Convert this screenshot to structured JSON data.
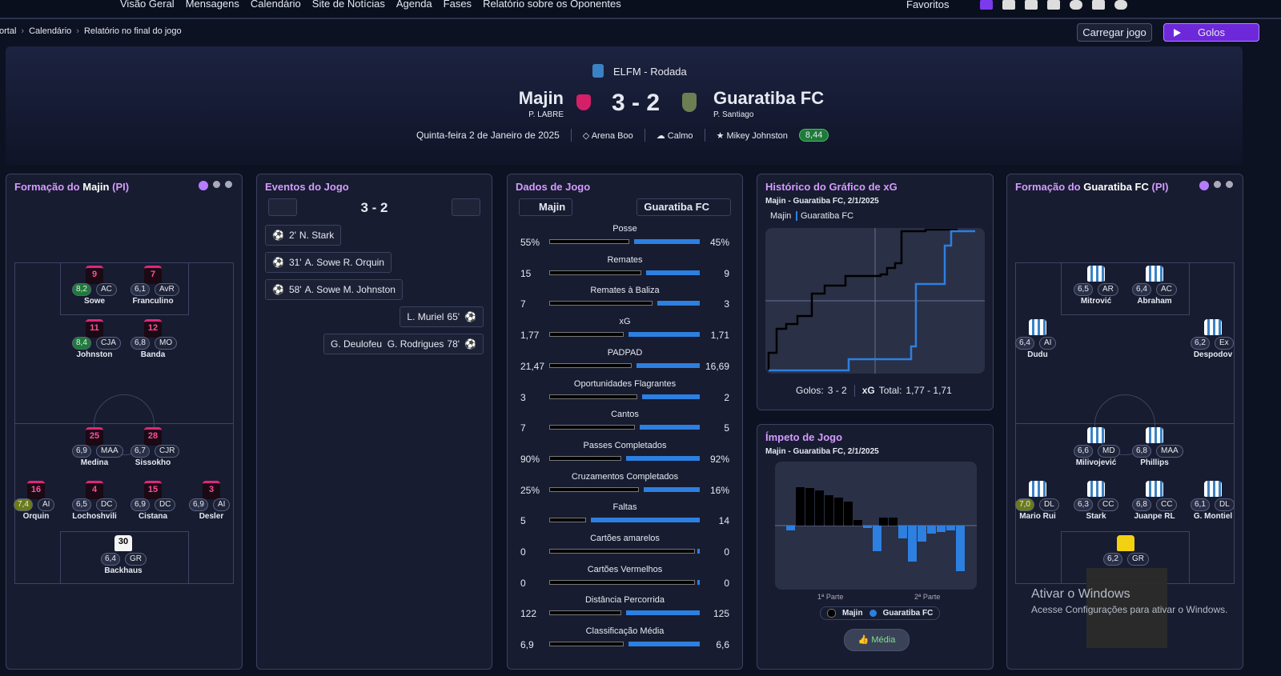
{
  "nav": {
    "items": [
      "Visão Geral",
      "Mensagens",
      "Calendário",
      "Site de Notícias",
      "Agenda",
      "Fases",
      "Relatório sobre os Oponentes"
    ],
    "favorites": "Favoritos"
  },
  "breadcrumb": [
    "ortal",
    "Calendário",
    "Relatório no final do jogo"
  ],
  "actions": {
    "load": "Carregar jogo",
    "goals": "Golos"
  },
  "header": {
    "competition": "ELFM - Rodada",
    "home": "Majin",
    "home_manager": "P. LABRE",
    "score": "3 - 2",
    "away": "Guaratiba FC",
    "away_manager": "P. Santiago",
    "date": "Quinta-feira 2 de Janeiro de 2025",
    "stadium": "Arena Boo",
    "weather": "Calmo",
    "mvp": "Mikey Johnston",
    "mvp_rating": "8,44"
  },
  "home_formation": {
    "title": "Formação do",
    "team": "Majin",
    "suffix": "(PI)",
    "players": [
      {
        "number": "9",
        "rating": "8,2",
        "pos": "AC",
        "name": "Sowe"
      },
      {
        "number": "7",
        "rating": "6,1",
        "pos": "AvR",
        "name": "Franculino"
      },
      {
        "number": "11",
        "rating": "8,4",
        "pos": "CJA",
        "name": "Johnston"
      },
      {
        "number": "12",
        "rating": "6,8",
        "pos": "MO",
        "name": "Banda"
      },
      {
        "number": "25",
        "rating": "6,9",
        "pos": "MAA",
        "name": "Medina"
      },
      {
        "number": "28",
        "rating": "6,7",
        "pos": "CJR",
        "name": "Sissokho"
      },
      {
        "number": "16",
        "rating": "7,4",
        "pos": "AI",
        "name": "Orquin"
      },
      {
        "number": "4",
        "rating": "6,5",
        "pos": "DC",
        "name": "Lochoshvili"
      },
      {
        "number": "15",
        "rating": "6,9",
        "pos": "DC",
        "name": "Cistana"
      },
      {
        "number": "3",
        "rating": "6,9",
        "pos": "AI",
        "name": "Desler"
      },
      {
        "number": "30",
        "rating": "6,4",
        "pos": "GR",
        "name": "Backhaus"
      }
    ]
  },
  "away_formation": {
    "title": "Formação do",
    "team": "Guaratiba FC",
    "suffix": "(PI)",
    "players": [
      {
        "rating": "6,5",
        "pos": "AR",
        "name": "Mitrović"
      },
      {
        "rating": "6,4",
        "pos": "AC",
        "name": "Abraham"
      },
      {
        "rating": "6,4",
        "pos": "AI",
        "name": "Dudu"
      },
      {
        "rating": "6,2",
        "pos": "Ex",
        "name": "Despodov"
      },
      {
        "rating": "6,6",
        "pos": "MD",
        "name": "Milivojević"
      },
      {
        "rating": "6,8",
        "pos": "MAA",
        "name": "Phillips"
      },
      {
        "rating": "7,0",
        "pos": "DL",
        "name": "Mario Rui"
      },
      {
        "rating": "6,3",
        "pos": "CC",
        "name": "Stark"
      },
      {
        "rating": "6,8",
        "pos": "CC",
        "name": "Juanpe RL"
      },
      {
        "rating": "6,1",
        "pos": "DL",
        "name": "G. Montiel"
      },
      {
        "rating": "6,2",
        "pos": "GR"
      }
    ]
  },
  "events": {
    "title": "Eventos do Jogo",
    "score": "3 - 2",
    "home": [
      {
        "minute": "2'",
        "text": "N. Stark"
      },
      {
        "minute": "31'",
        "text": "A. Sowe R. Orquin"
      },
      {
        "minute": "58'",
        "text": "A. Sowe M. Johnston"
      }
    ],
    "away": [
      {
        "minute": "65'",
        "text": "L. Muriel"
      },
      {
        "minute": "78'",
        "text": "G. Deulofeu  G. Rodrigues"
      }
    ]
  },
  "stats": {
    "title": "Dados de Jogo",
    "home": "Majin",
    "away": "Guaratiba FC",
    "rows": [
      {
        "label": "Posse",
        "home": "55%",
        "away": "45%"
      },
      {
        "label": "Remates",
        "home": "15",
        "away": "9"
      },
      {
        "label": "Remates à Baliza",
        "home": "7",
        "away": "3"
      },
      {
        "label": "xG",
        "home": "1,77",
        "away": "1,71"
      },
      {
        "label": "PADPAD",
        "home": "21,47",
        "away": "16,69"
      },
      {
        "label": "Oportunidades Flagrantes",
        "home": "3",
        "away": "2"
      },
      {
        "label": "Cantos",
        "home": "7",
        "away": "5"
      },
      {
        "label": "Passes Completados",
        "home": "90%",
        "away": "92%"
      },
      {
        "label": "Cruzamentos Completados",
        "home": "25%",
        "away": "16%"
      },
      {
        "label": "Faltas",
        "home": "5",
        "away": "14"
      },
      {
        "label": "Cartões amarelos",
        "home": "0",
        "away": "0"
      },
      {
        "label": "Cartões Vermelhos",
        "home": "0",
        "away": "0"
      },
      {
        "label": "Distância Percorrida",
        "home": "122",
        "away": "125"
      },
      {
        "label": "Classificação Média",
        "home": "6,9",
        "away": "6,6"
      }
    ]
  },
  "xg": {
    "title": "Histórico do Gráfico de xG",
    "subtitle": "Majin - Guaratiba FC, 2/1/2025",
    "legend": [
      "Majin",
      "Guaratiba FC"
    ],
    "goals_label": "Golos:",
    "goals": "3 - 2",
    "xg_label": "xG",
    "total_label": "Total:",
    "total": "1,77 - 1,71"
  },
  "momentum": {
    "title": "Ímpeto de Jogo",
    "subtitle": "Majin - Guaratiba FC, 2/1/2025",
    "halves": [
      "1ª Parte",
      "2ª Parte"
    ],
    "legend": [
      "Majin",
      "Guaratiba FC"
    ],
    "button": "Média"
  },
  "windows": {
    "title": "Ativar o Windows",
    "text": "Acesse Configurações para ativar o Windows."
  }
}
